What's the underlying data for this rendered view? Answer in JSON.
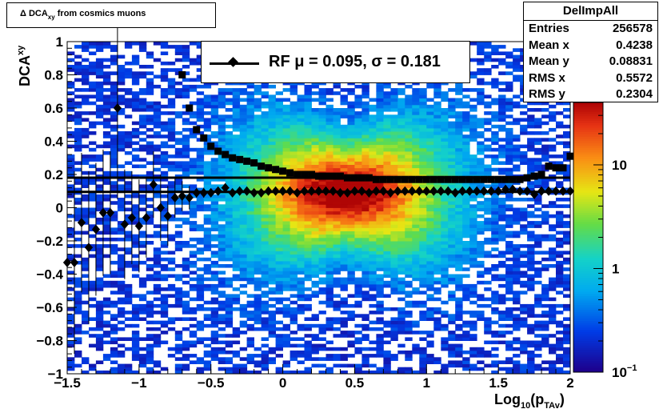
{
  "chart_data": {
    "type": "heatmap",
    "title": "Δ DCA_xy from cosmics muons",
    "title_main": "Δ DCA",
    "title_sub": "xy",
    "title_rest": "from cosmics muons",
    "xlabel_main": "Log",
    "xlabel_sub1": "10",
    "xlabel_mid": "(p",
    "xlabel_sub2": "TAv",
    "xlabel_end": ")",
    "ylabel_main": "DCA",
    "ylabel_sub": "xy",
    "xlim": [
      -1.5,
      2.0
    ],
    "ylim": [
      -1.0,
      1.0
    ],
    "x_ticks": [
      "−1.5",
      "−1",
      "−0.5",
      "0",
      "0.5",
      "1",
      "1.5",
      "2"
    ],
    "x_tick_values": [
      -1.5,
      -1.0,
      -0.5,
      0.0,
      0.5,
      1.0,
      1.5,
      2.0
    ],
    "y_ticks": [
      "1",
      "0.8",
      "0.6",
      "0.4",
      "0.2",
      "0",
      "−0.2",
      "−0.4",
      "−0.6",
      "−0.8",
      "−1"
    ],
    "y_tick_values": [
      1.0,
      0.8,
      0.6,
      0.4,
      0.2,
      0.0,
      -0.2,
      -0.4,
      -0.6,
      -0.8,
      -1.0
    ],
    "z_scale": "log",
    "z_ticks": [
      "10",
      "1",
      "10"
    ],
    "z_tick_sup": "−1",
    "z_tick_values": [
      10,
      1,
      0.1
    ],
    "stats": {
      "name": "DelImpAll",
      "rows": [
        {
          "label": "Entries",
          "value": "256578"
        },
        {
          "label": "Mean x",
          "value": "0.4238"
        },
        {
          "label": "Mean y",
          "value": "0.08831"
        },
        {
          "label": "RMS x",
          "value": "0.5572"
        },
        {
          "label": "RMS y",
          "value": "0.2304"
        }
      ]
    },
    "legend": {
      "text": "RF μ =  0.095, σ =   0.181"
    },
    "hlines": [
      0.095,
      0.181
    ],
    "series": [
      {
        "marker": "diamond",
        "x": [
          -1.5,
          -1.45,
          -1.4,
          -1.35,
          -1.3,
          -1.25,
          -1.2,
          -1.15,
          -1.1,
          -1.05,
          -1.0,
          -0.95,
          -0.9,
          -0.85,
          -0.8,
          -0.75,
          -0.7,
          -0.65,
          -0.6,
          -0.55,
          -0.5,
          -0.45,
          -0.4,
          -0.35,
          -0.3,
          -0.25,
          -0.2,
          -0.15,
          -0.1,
          -0.05,
          0.0,
          0.05,
          0.1,
          0.15,
          0.2,
          0.25,
          0.3,
          0.35,
          0.4,
          0.45,
          0.5,
          0.55,
          0.6,
          0.65,
          0.7,
          0.75,
          0.8,
          0.85,
          0.9,
          0.95,
          1.0,
          1.05,
          1.1,
          1.15,
          1.2,
          1.25,
          1.3,
          1.35,
          1.4,
          1.45,
          1.5,
          1.55,
          1.6,
          1.65,
          1.7,
          1.75,
          1.8,
          1.85,
          1.9,
          1.95,
          2.0
        ],
        "y": [
          -0.33,
          -0.33,
          -0.09,
          -0.24,
          -0.13,
          -0.03,
          -0.03,
          0.6,
          -0.1,
          -0.06,
          -0.11,
          -0.06,
          0.14,
          0.0,
          -0.05,
          0.06,
          0.07,
          0.06,
          0.09,
          0.09,
          0.09,
          0.1,
          0.12,
          0.09,
          0.1,
          0.1,
          0.09,
          0.09,
          0.1,
          0.1,
          0.1,
          0.1,
          0.09,
          0.1,
          0.1,
          0.1,
          0.1,
          0.1,
          0.09,
          0.09,
          0.1,
          0.1,
          0.09,
          0.1,
          0.1,
          0.09,
          0.1,
          0.1,
          0.1,
          0.1,
          0.1,
          0.1,
          0.1,
          0.1,
          0.09,
          0.1,
          0.1,
          0.1,
          0.1,
          0.1,
          0.1,
          0.11,
          0.11,
          0.1,
          0.1,
          0.08,
          0.1,
          0.1,
          0.1,
          0.1,
          0.1
        ],
        "err": [
          0.55,
          0.55,
          0.42,
          0.46,
          0.4,
          0.38,
          0.37,
          0.55,
          0.33,
          0.28,
          0.28,
          0.24,
          0.2,
          0.2,
          0.18,
          0.12,
          0.09,
          0.07,
          0.03,
          0.03,
          0.02,
          0.015,
          0.012,
          0.01,
          0.008,
          0.008,
          0.006,
          0.006,
          0.006,
          0.006,
          0.006,
          0.006,
          0.006,
          0.006,
          0.006,
          0.006,
          0.006,
          0.006,
          0.006,
          0.006,
          0.006,
          0.006,
          0.006,
          0.006,
          0.006,
          0.006,
          0.006,
          0.006,
          0.006,
          0.006,
          0.006,
          0.006,
          0.006,
          0.006,
          0.006,
          0.006,
          0.006,
          0.006,
          0.006,
          0.006,
          0.006,
          0.008,
          0.01,
          0.01,
          0.012,
          0.012,
          0.015,
          0.015,
          0.02,
          0.025,
          0.03
        ]
      },
      {
        "marker": "square",
        "x": [
          -0.7,
          -0.65,
          -0.6,
          -0.55,
          -0.5,
          -0.45,
          -0.4,
          -0.35,
          -0.3,
          -0.25,
          -0.2,
          -0.15,
          -0.1,
          -0.05,
          0.0,
          0.05,
          0.1,
          0.15,
          0.2,
          0.25,
          0.3,
          0.35,
          0.4,
          0.45,
          0.5,
          0.55,
          0.6,
          0.65,
          0.7,
          0.75,
          0.8,
          0.85,
          0.9,
          0.95,
          1.0,
          1.05,
          1.1,
          1.15,
          1.2,
          1.25,
          1.3,
          1.35,
          1.4,
          1.45,
          1.5,
          1.55,
          1.6,
          1.65,
          1.7,
          1.75,
          1.8,
          1.85,
          1.9,
          1.95,
          2.0
        ],
        "y": [
          0.8,
          0.6,
          0.47,
          0.42,
          0.37,
          0.34,
          0.32,
          0.3,
          0.29,
          0.28,
          0.27,
          0.25,
          0.24,
          0.23,
          0.22,
          0.21,
          0.2,
          0.2,
          0.2,
          0.19,
          0.19,
          0.19,
          0.19,
          0.18,
          0.18,
          0.18,
          0.18,
          0.17,
          0.17,
          0.17,
          0.17,
          0.17,
          0.17,
          0.17,
          0.17,
          0.17,
          0.17,
          0.17,
          0.17,
          0.17,
          0.17,
          0.17,
          0.17,
          0.17,
          0.17,
          0.17,
          0.17,
          0.17,
          0.18,
          0.19,
          0.2,
          0.25,
          0.24,
          0.24,
          0.31
        ]
      }
    ]
  }
}
